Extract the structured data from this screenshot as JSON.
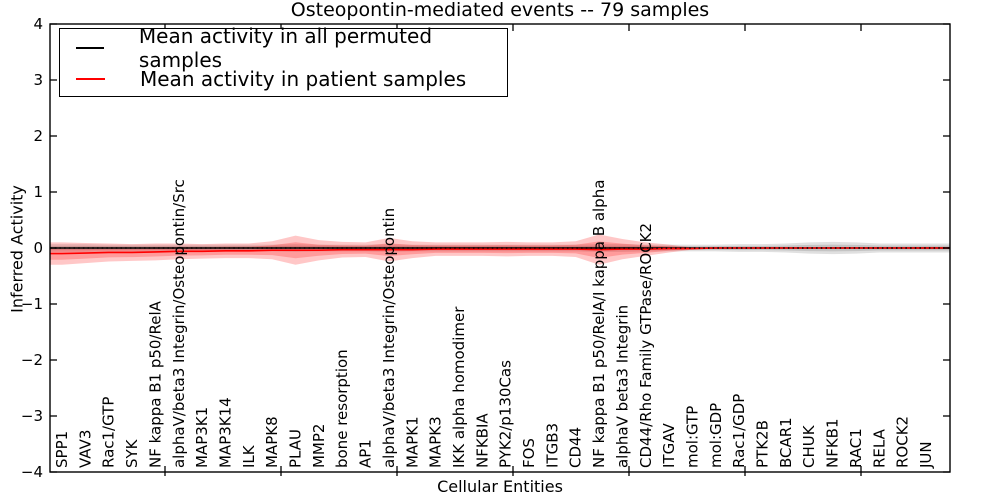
{
  "chart_data": {
    "type": "line",
    "title": "Osteopontin-mediated events -- 79 samples",
    "xlabel": "Cellular Entities",
    "ylabel": "Inferred Activity",
    "ylim": [
      -4,
      4
    ],
    "yticks": [
      4,
      3,
      2,
      1,
      0,
      -1,
      -2,
      -3,
      -4
    ],
    "grid": false,
    "legend_position": "upper left",
    "zero_line_style": "dotted",
    "categories": [
      "SPP1",
      "VAV3",
      "Rac1/GTP",
      "SYK",
      "NF kappa B1 p50/RelA",
      "alphaV/beta3 Integrin/Osteopontin/Src",
      "MAP3K1",
      "MAP3K14",
      "ILK",
      "MAPK8",
      "PLAU",
      "MMP2",
      "bone resorption",
      "AP1",
      "alphaV/beta3 Integrin/Osteopontin",
      "MAPK1",
      "MAPK3",
      "IKK alpha homodimer",
      "NFKBIA",
      "PYK2/p130Cas",
      "FOS",
      "ITGB3",
      "CD44",
      "NF kappa B1 p50/RelA/I kappa B alpha",
      "alphaV beta3 Integrin",
      "CD44/Rho Family GTPase/ROCK2",
      "ITGAV",
      "mol:GTP",
      "mol:GDP",
      "Rac1/GDP",
      "PTK2B",
      "BCAR1",
      "CHUK",
      "NFKB1",
      "RAC1",
      "RELA",
      "ROCK2",
      "JUN"
    ],
    "series": [
      {
        "name": "Mean activity in all permuted samples",
        "color": "#000000",
        "band_color": "#000000",
        "band_opacity": 0.12,
        "values": [
          0,
          0,
          0,
          0,
          0,
          0,
          0,
          0,
          0,
          0,
          0,
          0,
          0,
          0,
          0,
          0,
          0,
          0,
          0,
          0,
          0,
          0,
          0,
          0,
          0,
          0,
          0,
          0,
          0,
          0,
          0,
          0,
          0,
          0,
          0,
          0,
          0,
          0
        ],
        "band": [
          0.07,
          0.07,
          0.06,
          0.06,
          0.06,
          0.06,
          0.06,
          0.06,
          0.06,
          0.06,
          0.07,
          0.06,
          0.06,
          0.06,
          0.07,
          0.06,
          0.06,
          0.06,
          0.06,
          0.06,
          0.06,
          0.06,
          0.06,
          0.07,
          0.07,
          0.06,
          0.06,
          0.06,
          0.06,
          0.07,
          0.07,
          0.08,
          0.1,
          0.11,
          0.1,
          0.08,
          0.08,
          0.08
        ]
      },
      {
        "name": "Mean activity in patient samples",
        "color": "#ff0000",
        "band_color": "#ff0000",
        "band_opacity": 0.22,
        "values": [
          -0.1,
          -0.09,
          -0.08,
          -0.08,
          -0.07,
          -0.06,
          -0.06,
          -0.05,
          -0.05,
          -0.04,
          -0.04,
          -0.04,
          -0.03,
          -0.03,
          -0.03,
          -0.03,
          -0.02,
          -0.02,
          -0.02,
          -0.02,
          -0.02,
          -0.02,
          -0.02,
          -0.03,
          -0.02,
          -0.02,
          -0.01,
          -0.01,
          0,
          0,
          0,
          0,
          0,
          0,
          0,
          0,
          0,
          0
        ],
        "band": [
          0.2,
          0.18,
          0.16,
          0.15,
          0.15,
          0.14,
          0.13,
          0.13,
          0.13,
          0.16,
          0.26,
          0.18,
          0.14,
          0.13,
          0.21,
          0.15,
          0.12,
          0.12,
          0.12,
          0.13,
          0.12,
          0.12,
          0.14,
          0.27,
          0.18,
          0.12,
          0.07,
          0.02,
          0.01,
          0.01,
          0.01,
          0.01,
          0.01,
          0.01,
          0.01,
          0.01,
          0.01,
          0.02
        ]
      }
    ]
  }
}
